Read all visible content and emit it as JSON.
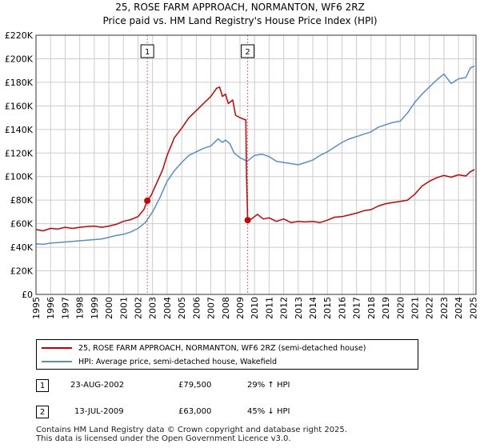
{
  "title_line1": "25, ROSE FARM APPROACH, NORMANTON, WF6 2RZ",
  "title_line2": "Price paid vs. HM Land Registry's House Price Index (HPI)",
  "chart_data": {
    "type": "line",
    "xlim": [
      1995,
      2025.2
    ],
    "ylim": [
      0,
      220000
    ],
    "y_ticks": [
      0,
      20000,
      40000,
      60000,
      80000,
      100000,
      120000,
      140000,
      160000,
      180000,
      200000,
      220000
    ],
    "y_tick_labels": [
      "£0",
      "£20K",
      "£40K",
      "£60K",
      "£80K",
      "£100K",
      "£120K",
      "£140K",
      "£160K",
      "£180K",
      "£200K",
      "£220K"
    ],
    "x_ticks": [
      1995,
      1996,
      1997,
      1998,
      1999,
      2000,
      2001,
      2002,
      2003,
      2004,
      2005,
      2006,
      2007,
      2008,
      2009,
      2010,
      2011,
      2012,
      2013,
      2014,
      2015,
      2016,
      2017,
      2018,
      2019,
      2020,
      2021,
      2022,
      2023,
      2024,
      2025
    ],
    "x_tick_labels": [
      "1995",
      "1996",
      "1997",
      "1998",
      "1999",
      "2000",
      "2001",
      "2002",
      "2003",
      "2004",
      "2005",
      "2006",
      "2007",
      "2008",
      "2009",
      "2010",
      "2011",
      "2012",
      "2013",
      "2014",
      "2015",
      "2016",
      "2017",
      "2018",
      "2019",
      "2020",
      "2021",
      "2022",
      "2023",
      "2024",
      "2025"
    ],
    "grid": true,
    "series": [
      {
        "name": "25, ROSE FARM APPROACH, NORMANTON, WF6 2RZ (semi-detached house)",
        "color": "#cc0000",
        "x": [
          1995.0,
          1995.5,
          1996.0,
          1996.5,
          1997.0,
          1997.5,
          1998.0,
          1998.5,
          1999.0,
          1999.5,
          2000.0,
          2000.5,
          2001.0,
          2001.5,
          2002.0,
          2002.4,
          2002.64,
          2002.9,
          2003.3,
          2003.7,
          2004.0,
          2004.5,
          2005.0,
          2005.5,
          2006.0,
          2006.5,
          2007.0,
          2007.4,
          2007.6,
          2007.8,
          2008.0,
          2008.2,
          2008.5,
          2008.7,
          2009.0,
          2009.4,
          2009.45,
          2009.53,
          2009.8,
          2010.2,
          2010.6,
          2011.0,
          2011.5,
          2012.0,
          2012.5,
          2013.0,
          2013.5,
          2014.0,
          2014.5,
          2015.0,
          2015.5,
          2016.0,
          2016.5,
          2017.0,
          2017.5,
          2018.0,
          2018.5,
          2019.0,
          2019.5,
          2020.0,
          2020.5,
          2021.0,
          2021.5,
          2022.0,
          2022.5,
          2023.0,
          2023.5,
          2024.0,
          2024.5,
          2024.8,
          2025.1
        ],
        "values": [
          55000,
          54000,
          56000,
          55500,
          57000,
          56000,
          57000,
          57500,
          58000,
          57000,
          58000,
          59500,
          62000,
          63500,
          66000,
          72000,
          79500,
          84000,
          95000,
          106000,
          118000,
          133000,
          141000,
          150000,
          156000,
          162000,
          168000,
          175000,
          176000,
          168000,
          170000,
          162000,
          165000,
          152000,
          150000,
          148000,
          100000,
          63000,
          64000,
          68000,
          64000,
          65000,
          62000,
          64000,
          61000,
          62000,
          61500,
          62000,
          61000,
          63000,
          65500,
          66000,
          67500,
          69000,
          71000,
          72000,
          75000,
          77000,
          78000,
          79000,
          80000,
          85000,
          92000,
          96000,
          99000,
          101000,
          99500,
          101500,
          100500,
          104000,
          106000
        ]
      },
      {
        "name": "HPI: Average price, semi-detached house, Wakefield",
        "color": "#5b8ccc",
        "x": [
          1995.0,
          1995.5,
          1996.0,
          1996.5,
          1997.0,
          1997.5,
          1998.0,
          1998.5,
          1999.0,
          1999.5,
          2000.0,
          2000.5,
          2001.0,
          2001.5,
          2002.0,
          2002.5,
          2003.0,
          2003.5,
          2004.0,
          2004.5,
          2005.0,
          2005.5,
          2006.0,
          2006.5,
          2007.0,
          2007.5,
          2007.8,
          2008.0,
          2008.3,
          2008.6,
          2009.0,
          2009.5,
          2010.0,
          2010.5,
          2011.0,
          2011.5,
          2012.0,
          2012.5,
          2013.0,
          2013.5,
          2014.0,
          2014.5,
          2015.0,
          2015.5,
          2016.0,
          2016.5,
          2017.0,
          2017.5,
          2018.0,
          2018.5,
          2019.0,
          2019.5,
          2020.0,
          2020.5,
          2021.0,
          2021.5,
          2022.0,
          2022.5,
          2023.0,
          2023.5,
          2024.0,
          2024.5,
          2024.8,
          2025.1
        ],
        "values": [
          43000,
          42500,
          43500,
          44000,
          44500,
          45000,
          45500,
          46000,
          46500,
          47000,
          48500,
          50000,
          51000,
          53000,
          56000,
          61000,
          70000,
          82000,
          96000,
          105000,
          112000,
          118000,
          121000,
          124000,
          126000,
          132000,
          129000,
          131000,
          128000,
          120000,
          116000,
          113000,
          118000,
          119000,
          117000,
          113000,
          112000,
          111000,
          110000,
          112000,
          114000,
          118000,
          121000,
          125000,
          129000,
          132000,
          134000,
          136000,
          138000,
          142000,
          144000,
          146000,
          147000,
          154000,
          163000,
          170000,
          176000,
          182000,
          187000,
          179000,
          183000,
          184000,
          192000,
          194000
        ]
      }
    ],
    "sale_markers": [
      {
        "label": "1",
        "x": 2002.64,
        "value": 79500
      },
      {
        "label": "2",
        "x": 2009.53,
        "value": 63000
      }
    ]
  },
  "legend": {
    "property_label": "25, ROSE FARM APPROACH, NORMANTON, WF6 2RZ (semi-detached house)",
    "hpi_label": "HPI: Average price, semi-detached house, Wakefield"
  },
  "sales": [
    {
      "label": "1",
      "date": "23-AUG-2002",
      "price": "£79,500",
      "hpi_change": "29% ↑ HPI"
    },
    {
      "label": "2",
      "date": "13-JUL-2009",
      "price": "£63,000",
      "hpi_change": "45% ↓ HPI"
    }
  ],
  "footer": {
    "line1": "Contains HM Land Registry data © Crown copyright and database right 2025.",
    "line2": "This data is licensed under the Open Government Licence v3.0."
  }
}
